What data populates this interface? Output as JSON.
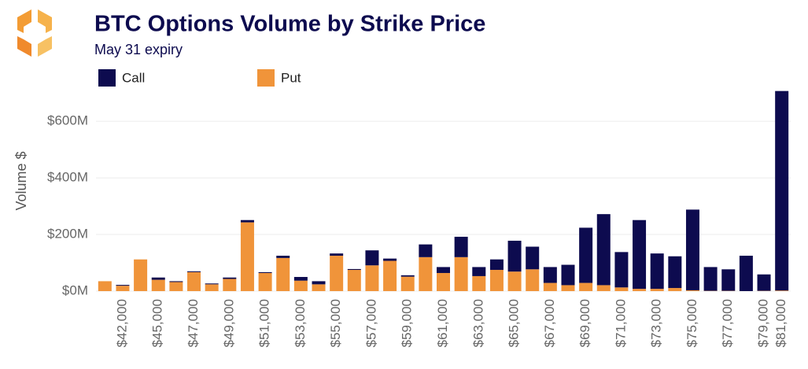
{
  "chart_data": {
    "type": "stacked_bar",
    "title": "BTC Options Volume by Strike Price",
    "subtitle": "May 31 expiry",
    "y_label": "Volume $",
    "categories": [
      null,
      "$42,000",
      null,
      "$45,000",
      null,
      "$47,000",
      null,
      "$49,000",
      null,
      "$51,000",
      null,
      "$53,000",
      null,
      "$55,000",
      null,
      "$57,000",
      null,
      "$59,000",
      null,
      "$61,000",
      null,
      "$63,000",
      null,
      "$65,000",
      null,
      "$67,000",
      null,
      "$69,000",
      null,
      "$71,000",
      null,
      "$73,000",
      null,
      "$75,000",
      null,
      "$77,000",
      null,
      "$79,000",
      "$81,000"
    ],
    "series": [
      {
        "name": "Put",
        "color": "#f0943a",
        "values": [
          35,
          19,
          112,
          40,
          32,
          67,
          24,
          43,
          243,
          64,
          117,
          37,
          24,
          125,
          75,
          91,
          107,
          51,
          120,
          64,
          120,
          53,
          75,
          69,
          77,
          29,
          21,
          29,
          21,
          13,
          8,
          8,
          11,
          3,
          1,
          1,
          0,
          1,
          2
        ]
      },
      {
        "name": "Call",
        "color": "#0d0b4f",
        "values": [
          0,
          3,
          0,
          8,
          3,
          3,
          3,
          5,
          8,
          3,
          8,
          13,
          11,
          8,
          3,
          53,
          8,
          5,
          45,
          21,
          72,
          32,
          37,
          109,
          80,
          56,
          72,
          195,
          251,
          125,
          243,
          125,
          112,
          285,
          84,
          76,
          125,
          58,
          705
        ]
      }
    ],
    "legend_order": [
      1,
      0
    ],
    "ylim": [
      0,
      720
    ],
    "yticks": [
      {
        "value": 0,
        "label": "$0M"
      },
      {
        "value": 200,
        "label": "$200M"
      },
      {
        "value": 400,
        "label": "$400M"
      },
      {
        "value": 600,
        "label": "$600M"
      }
    ],
    "grid": true
  }
}
